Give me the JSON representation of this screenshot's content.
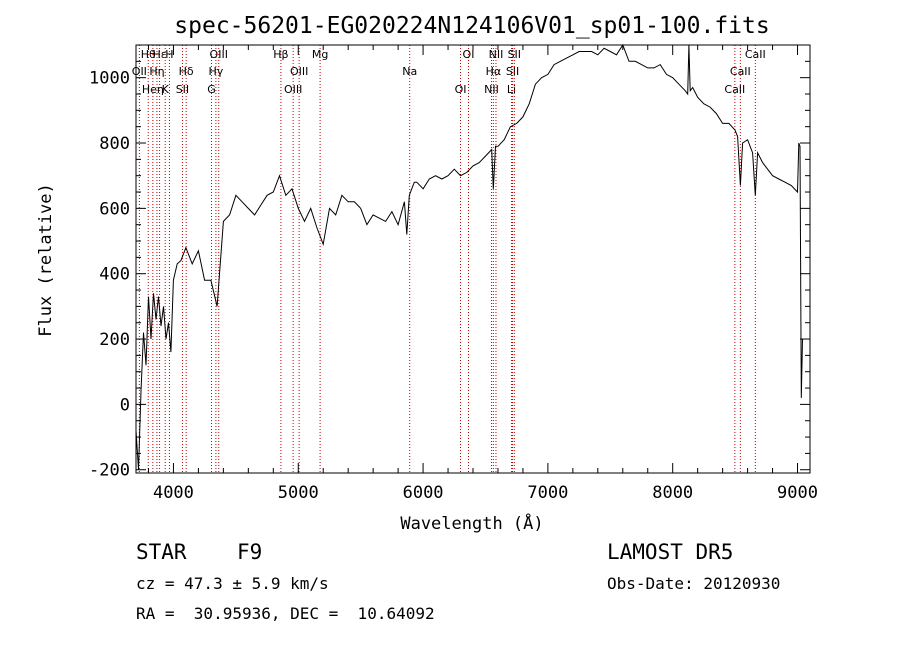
{
  "chart_data": {
    "type": "line",
    "title": "spec-56201-EG020224N124106V01_sp01-100.fits",
    "xlabel": "Wavelength (Å)",
    "ylabel": "Flux (relative)",
    "xlim": [
      3700,
      9100
    ],
    "ylim": [
      -210,
      1100
    ],
    "xticks": [
      4000,
      5000,
      6000,
      7000,
      8000,
      9000
    ],
    "yticks": [
      -200,
      0,
      200,
      400,
      600,
      800,
      1000
    ],
    "series": [
      {
        "line_color": "#000000",
        "x": [
          3700,
          3720,
          3740,
          3760,
          3780,
          3800,
          3820,
          3840,
          3860,
          3880,
          3900,
          3920,
          3940,
          3960,
          3980,
          4000,
          4030,
          4060,
          4100,
          4150,
          4200,
          4250,
          4300,
          4350,
          4400,
          4450,
          4500,
          4550,
          4600,
          4650,
          4700,
          4750,
          4800,
          4850,
          4900,
          4950,
          5000,
          5050,
          5100,
          5150,
          5200,
          5250,
          5300,
          5350,
          5400,
          5450,
          5500,
          5550,
          5600,
          5650,
          5700,
          5750,
          5800,
          5850,
          5870,
          5890,
          5910,
          5930,
          5950,
          6000,
          6050,
          6100,
          6150,
          6200,
          6250,
          6300,
          6350,
          6400,
          6450,
          6500,
          6550,
          6563,
          6580,
          6600,
          6650,
          6700,
          6750,
          6800,
          6850,
          6900,
          6950,
          7000,
          7050,
          7100,
          7150,
          7200,
          7250,
          7300,
          7350,
          7400,
          7450,
          7500,
          7550,
          7600,
          7650,
          7700,
          7750,
          7800,
          7850,
          7900,
          7950,
          8000,
          8050,
          8100,
          8120,
          8130,
          8140,
          8160,
          8200,
          8250,
          8300,
          8350,
          8400,
          8450,
          8498,
          8520,
          8542,
          8560,
          8600,
          8640,
          8662,
          8680,
          8720,
          8760,
          8800,
          8850,
          8900,
          8950,
          9000,
          9010,
          9020,
          9030,
          9040
        ],
        "y": [
          -80,
          -200,
          40,
          220,
          120,
          330,
          200,
          340,
          260,
          330,
          240,
          300,
          200,
          250,
          160,
          380,
          430,
          440,
          480,
          430,
          470,
          380,
          380,
          300,
          560,
          580,
          640,
          620,
          600,
          580,
          610,
          640,
          650,
          700,
          640,
          660,
          600,
          560,
          600,
          540,
          490,
          600,
          580,
          640,
          620,
          620,
          600,
          550,
          580,
          570,
          560,
          590,
          550,
          620,
          520,
          640,
          660,
          680,
          680,
          660,
          690,
          700,
          690,
          700,
          720,
          700,
          710,
          730,
          740,
          760,
          780,
          660,
          790,
          790,
          810,
          850,
          860,
          880,
          920,
          980,
          1000,
          1010,
          1040,
          1050,
          1060,
          1070,
          1080,
          1080,
          1080,
          1070,
          1090,
          1080,
          1070,
          1100,
          1050,
          1050,
          1040,
          1030,
          1030,
          1040,
          1010,
          1000,
          980,
          960,
          950,
          1100,
          960,
          970,
          940,
          920,
          910,
          890,
          860,
          860,
          840,
          820,
          670,
          800,
          810,
          770,
          640,
          770,
          740,
          720,
          700,
          690,
          680,
          670,
          650,
          800,
          790,
          20,
          200
        ]
      }
    ],
    "spectral_lines": [
      {
        "label": "Hθ",
        "x": 3798
      },
      {
        "label": "OII",
        "x": 3727
      },
      {
        "label": "Heη",
        "x": 3835
      },
      {
        "label": "Hε",
        "x": 3889
      },
      {
        "label": "Hη",
        "x": 3868
      },
      {
        "label": "K",
        "x": 3934
      },
      {
        "label": "H",
        "x": 3968
      },
      {
        "label": "Hδ",
        "x": 4102
      },
      {
        "label": "SII",
        "x": 4072
      },
      {
        "label": "OIII",
        "x": 4363
      },
      {
        "label": "Hγ",
        "x": 4340
      },
      {
        "label": "G",
        "x": 4305
      },
      {
        "label": "Hβ",
        "x": 4861
      },
      {
        "label": "OIII",
        "x": 5007
      },
      {
        "label": "OIII",
        "x": 4959
      },
      {
        "label": "Mg",
        "x": 5175
      },
      {
        "label": "Na",
        "x": 5893
      },
      {
        "label": "OI",
        "x": 6300
      },
      {
        "label": "OI",
        "x": 6364
      },
      {
        "label": "Hα",
        "x": 6563
      },
      {
        "label": "NII",
        "x": 6548
      },
      {
        "label": "NII",
        "x": 6584
      },
      {
        "label": "SII",
        "x": 6717
      },
      {
        "label": "Li",
        "x": 6708
      },
      {
        "label": "SII",
        "x": 6731
      },
      {
        "label": "CaII",
        "x": 8542
      },
      {
        "label": "CaII",
        "x": 8498
      },
      {
        "label": "CaII",
        "x": 8662
      }
    ]
  },
  "info": {
    "object_class": "STAR",
    "subclass": "F9",
    "survey": "LAMOST DR5",
    "redshift_line": "cz = 47.3 ± 5.9 km/s",
    "obs_date_line": "Obs-Date: 20120930",
    "coords_line": "RA =  30.95936, DEC =  10.64092"
  }
}
